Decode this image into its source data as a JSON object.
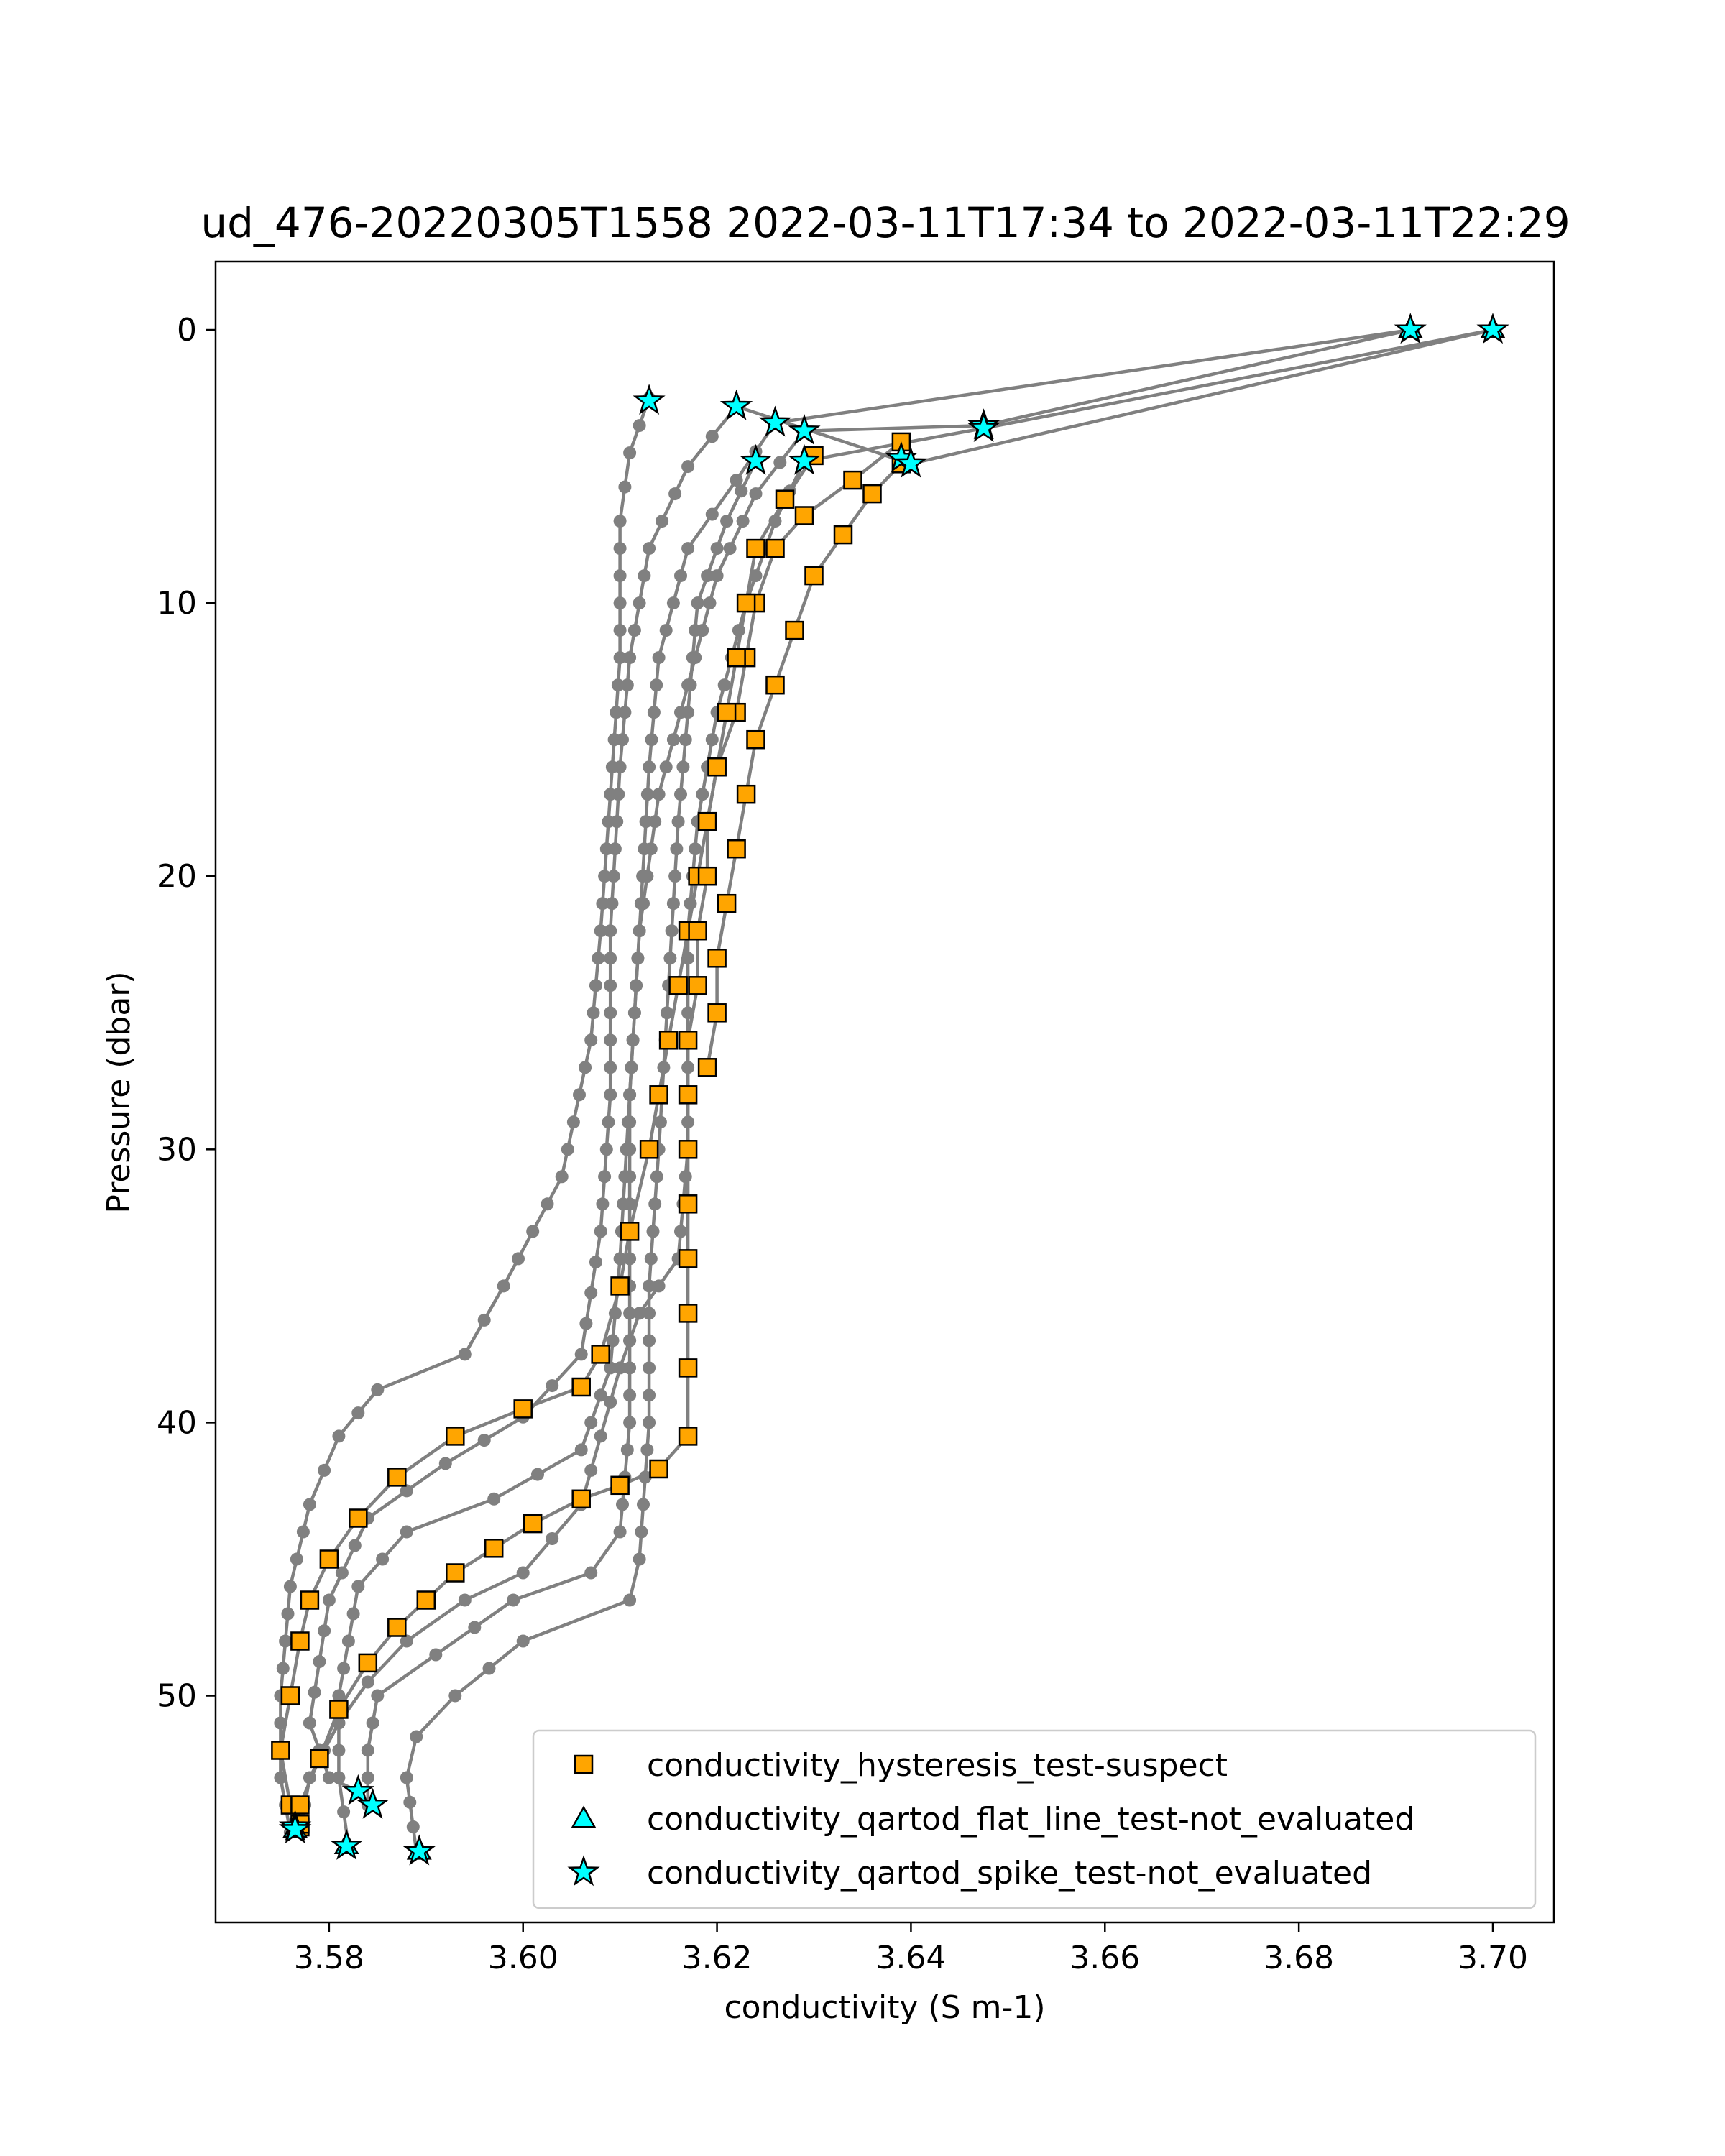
{
  "chart_data": {
    "type": "scatter",
    "title": "ud_476-20220305T1558 2022-03-11T17:34 to 2022-03-11T22:29",
    "xlabel": "conductivity (S m-1)",
    "ylabel": "Pressure (dbar)",
    "xlim": [
      3.5683,
      3.7063
    ],
    "ylim": [
      58.3,
      -2.5
    ],
    "y_inverted": true,
    "xticks": [
      3.58,
      3.6,
      3.62,
      3.64,
      3.66,
      3.68,
      3.7
    ],
    "xtick_labels": [
      "3.58",
      "3.60",
      "3.62",
      "3.64",
      "3.66",
      "3.68",
      "3.70"
    ],
    "yticks": [
      0,
      10,
      20,
      30,
      40,
      50
    ],
    "ytick_labels": [
      "0",
      "10",
      "20",
      "30",
      "40",
      "50"
    ],
    "grid": false,
    "legend_position": "lower-right",
    "colors": {
      "profile_line": "#808080",
      "hysteresis": "#FFA500",
      "flat_line": "#00FFFF",
      "spike": "#00FFFF",
      "marker_edge": "#000000"
    },
    "legend": [
      {
        "label": "conductivity_hysteresis_test-suspect",
        "marker": "square",
        "color": "#FFA500"
      },
      {
        "label": "conductivity_qartod_flat_line_test-not_evaluated",
        "marker": "triangle",
        "color": "#00FFFF"
      },
      {
        "label": "conductivity_qartod_spike_test-not_evaluated",
        "marker": "star",
        "color": "#00FFFF"
      }
    ],
    "profile_keypoints": [
      [
        [
          3.613,
          2.5
        ],
        [
          3.611,
          4.5
        ],
        [
          3.61,
          7
        ],
        [
          3.61,
          12
        ],
        [
          3.609,
          17
        ],
        [
          3.608,
          22
        ],
        [
          3.607,
          26
        ],
        [
          3.604,
          31
        ],
        [
          3.598,
          35
        ],
        [
          3.594,
          37.5
        ],
        [
          3.585,
          38.8
        ],
        [
          3.581,
          40.5
        ],
        [
          3.578,
          43
        ],
        [
          3.576,
          46
        ],
        [
          3.575,
          50
        ],
        [
          3.575,
          53
        ],
        [
          3.576,
          55
        ]
      ],
      [
        [
          3.622,
          2.8
        ],
        [
          3.617,
          5
        ],
        [
          3.613,
          8
        ],
        [
          3.611,
          12
        ],
        [
          3.61,
          16
        ],
        [
          3.609,
          22
        ],
        [
          3.609,
          28
        ],
        [
          3.608,
          33
        ],
        [
          3.606,
          37.5
        ],
        [
          3.6,
          39.8
        ],
        [
          3.592,
          41.5
        ],
        [
          3.584,
          43.5
        ],
        [
          3.58,
          46.5
        ],
        [
          3.578,
          51
        ],
        [
          3.58,
          53
        ],
        [
          3.583,
          53.5
        ]
      ],
      [
        [
          3.626,
          3.4
        ],
        [
          3.622,
          5.5
        ],
        [
          3.617,
          8
        ],
        [
          3.614,
          12
        ],
        [
          3.613,
          16
        ],
        [
          3.612,
          22
        ],
        [
          3.611,
          28
        ],
        [
          3.61,
          34
        ],
        [
          3.609,
          38
        ],
        [
          3.606,
          41
        ],
        [
          3.597,
          42.8
        ],
        [
          3.588,
          44
        ],
        [
          3.583,
          46
        ],
        [
          3.581,
          50
        ],
        [
          3.581,
          53
        ],
        [
          3.582,
          55.5
        ]
      ],
      [
        [
          3.629,
          3.7
        ],
        [
          3.624,
          6
        ],
        [
          3.62,
          9
        ],
        [
          3.617,
          13
        ],
        [
          3.614,
          17
        ],
        [
          3.612,
          22
        ],
        [
          3.611,
          28
        ],
        [
          3.611,
          34
        ],
        [
          3.611,
          40
        ],
        [
          3.61,
          44
        ],
        [
          3.607,
          45.5
        ],
        [
          3.599,
          46.5
        ],
        [
          3.591,
          48.5
        ],
        [
          3.585,
          50
        ],
        [
          3.584,
          52
        ],
        [
          3.584,
          54
        ]
      ],
      [
        [
          3.624,
          4.8
        ],
        [
          3.621,
          7
        ],
        [
          3.618,
          10
        ],
        [
          3.617,
          14
        ],
        [
          3.616,
          18
        ],
        [
          3.615,
          24
        ],
        [
          3.614,
          30
        ],
        [
          3.613,
          35
        ],
        [
          3.613,
          40
        ],
        [
          3.612,
          45
        ],
        [
          3.611,
          46.5
        ],
        [
          3.6,
          48
        ],
        [
          3.593,
          50
        ],
        [
          3.589,
          51.5
        ],
        [
          3.588,
          53
        ],
        [
          3.589,
          55.7
        ]
      ],
      [
        [
          3.629,
          4.8
        ],
        [
          3.626,
          7
        ],
        [
          3.623,
          10
        ],
        [
          3.62,
          14
        ],
        [
          3.618,
          18
        ],
        [
          3.617,
          22
        ],
        [
          3.617,
          26
        ],
        [
          3.617,
          30
        ],
        [
          3.616,
          34
        ],
        [
          3.612,
          36
        ],
        [
          3.61,
          38
        ],
        [
          3.608,
          40.5
        ],
        [
          3.606,
          43
        ],
        [
          3.6,
          45.5
        ],
        [
          3.594,
          46.5
        ],
        [
          3.588,
          48
        ],
        [
          3.584,
          49.5
        ],
        [
          3.581,
          51
        ],
        [
          3.578,
          53
        ],
        [
          3.577,
          55
        ]
      ]
    ],
    "hysteresis_segments": [
      [
        [
          3.639,
          4.1
        ],
        [
          3.634,
          5.5
        ],
        [
          3.629,
          6.8
        ],
        [
          3.626,
          8
        ],
        [
          3.624,
          10
        ],
        [
          3.623,
          12
        ],
        [
          3.622,
          14
        ],
        [
          3.62,
          16
        ],
        [
          3.619,
          18
        ],
        [
          3.618,
          20
        ],
        [
          3.617,
          22
        ],
        [
          3.616,
          24
        ],
        [
          3.615,
          26
        ],
        [
          3.614,
          28
        ],
        [
          3.613,
          30
        ],
        [
          3.611,
          33
        ],
        [
          3.61,
          35
        ],
        [
          3.608,
          37.5
        ],
        [
          3.606,
          38.7
        ],
        [
          3.6,
          39.5
        ],
        [
          3.593,
          40.5
        ],
        [
          3.587,
          42
        ],
        [
          3.583,
          43.5
        ],
        [
          3.58,
          45
        ],
        [
          3.578,
          46.5
        ],
        [
          3.577,
          48
        ],
        [
          3.576,
          50
        ],
        [
          3.575,
          52
        ],
        [
          3.576,
          54
        ],
        [
          3.577,
          54.8
        ]
      ],
      [
        [
          3.63,
          4.6
        ],
        [
          3.627,
          6.2
        ],
        [
          3.624,
          8
        ],
        [
          3.623,
          10
        ],
        [
          3.622,
          12
        ],
        [
          3.621,
          14
        ],
        [
          3.62,
          16
        ],
        [
          3.619,
          18
        ],
        [
          3.619,
          20
        ],
        [
          3.618,
          22
        ],
        [
          3.618,
          24
        ],
        [
          3.617,
          26
        ],
        [
          3.617,
          28
        ],
        [
          3.617,
          30
        ],
        [
          3.617,
          32
        ],
        [
          3.617,
          34
        ],
        [
          3.617,
          36
        ],
        [
          3.617,
          38
        ],
        [
          3.617,
          40.5
        ],
        [
          3.614,
          41.7
        ],
        [
          3.61,
          42.3
        ],
        [
          3.606,
          42.8
        ],
        [
          3.601,
          43.7
        ],
        [
          3.597,
          44.6
        ],
        [
          3.593,
          45.5
        ],
        [
          3.59,
          46.5
        ],
        [
          3.587,
          47.5
        ],
        [
          3.584,
          48.8
        ],
        [
          3.581,
          50.5
        ],
        [
          3.579,
          52.3
        ],
        [
          3.577,
          54
        ],
        [
          3.577,
          54.7
        ]
      ],
      [
        [
          3.639,
          4.9
        ],
        [
          3.636,
          6
        ],
        [
          3.633,
          7.5
        ],
        [
          3.63,
          9
        ],
        [
          3.628,
          11
        ],
        [
          3.626,
          13
        ],
        [
          3.624,
          15
        ],
        [
          3.623,
          17
        ],
        [
          3.622,
          19
        ],
        [
          3.621,
          21
        ],
        [
          3.62,
          23
        ],
        [
          3.62,
          25
        ],
        [
          3.619,
          27
        ]
      ]
    ],
    "spike_points": [
      [
        3.613,
        2.6
      ],
      [
        3.622,
        2.8
      ],
      [
        3.626,
        3.4
      ],
      [
        3.629,
        3.7
      ],
      [
        3.6475,
        3.5
      ],
      [
        3.6475,
        3.6
      ],
      [
        3.624,
        4.8
      ],
      [
        3.629,
        4.8
      ],
      [
        3.639,
        4.7
      ],
      [
        3.64,
        4.9
      ],
      [
        3.6915,
        0.0
      ],
      [
        3.7,
        0.0
      ],
      [
        3.583,
        53.5
      ],
      [
        3.5845,
        54.0
      ],
      [
        3.5765,
        54.8
      ],
      [
        3.5765,
        54.9
      ],
      [
        3.5818,
        55.5
      ],
      [
        3.5893,
        55.7
      ]
    ],
    "flat_line_points": [
      [
        3.6915,
        0.0
      ],
      [
        3.7,
        0.0
      ],
      [
        3.5765,
        54.9
      ],
      [
        3.5818,
        55.5
      ],
      [
        3.5893,
        55.7
      ]
    ],
    "surface_lines": [
      [
        [
          3.622,
          2.8
        ],
        [
          3.64,
          4.9
        ],
        [
          3.7,
          0.0
        ],
        [
          3.6475,
          3.6
        ],
        [
          3.629,
          4.8
        ]
      ],
      [
        [
          3.626,
          3.4
        ],
        [
          3.6915,
          0.0
        ],
        [
          3.6475,
          3.5
        ],
        [
          3.629,
          3.7
        ]
      ]
    ]
  }
}
